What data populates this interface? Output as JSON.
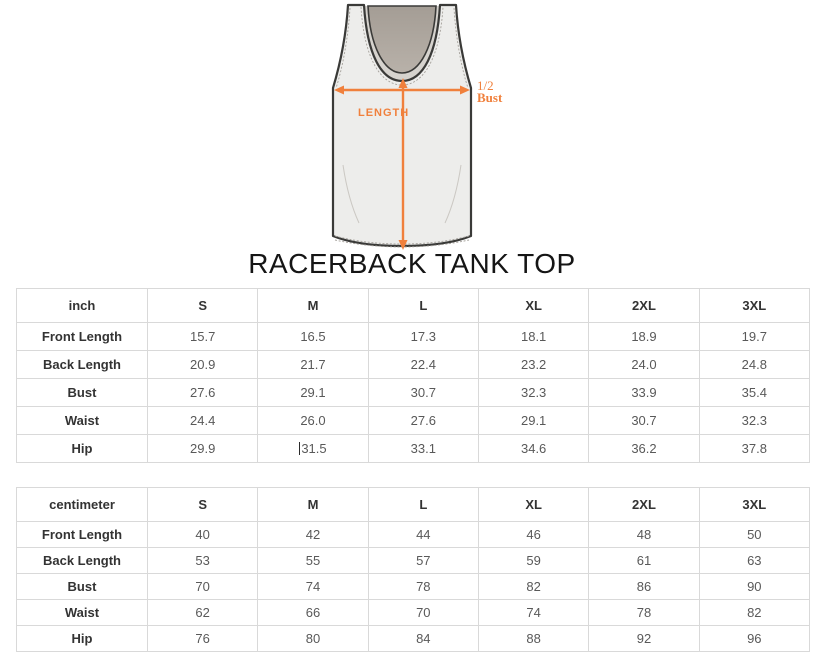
{
  "title": "RACERBACK TANK TOP",
  "illustration": {
    "length_label": "LENGTH",
    "bust_label_line1": "1/2",
    "bust_label_line2": "Bust"
  },
  "artifact": {
    "clipped_text": "t"
  },
  "colors": {
    "accent": "#F0803C",
    "outline": "#3A3A38",
    "shirt": "#EDEDEB",
    "panel-top": "#A49D95",
    "panel-bottom": "#B8B1A9",
    "neck-inner": "#D6D3CE",
    "border": "#D9D9D9",
    "label-text": "#333333",
    "value-text": "#595959",
    "title-text": "#151515"
  },
  "tables": [
    {
      "unit": "inch",
      "columns": [
        "S",
        "M",
        "L",
        "XL",
        "2XL",
        "3XL"
      ],
      "rows": [
        {
          "label": "Front Length",
          "values": [
            "15.7",
            "16.5",
            "17.3",
            "18.1",
            "18.9",
            "19.7"
          ]
        },
        {
          "label": "Back Length",
          "values": [
            "20.9",
            "21.7",
            "22.4",
            "23.2",
            "24.0",
            "24.8"
          ]
        },
        {
          "label": "Bust",
          "values": [
            "27.6",
            "29.1",
            "30.7",
            "32.3",
            "33.9",
            "35.4"
          ]
        },
        {
          "label": "Waist",
          "values": [
            "24.4",
            "26.0",
            "27.6",
            "29.1",
            "30.7",
            "32.3"
          ]
        },
        {
          "label": "Hip",
          "values": [
            "29.9",
            "31.5",
            "33.1",
            "34.6",
            "36.2",
            "37.8"
          ]
        }
      ],
      "caret": {
        "row": 4,
        "col": 1
      }
    },
    {
      "unit": "centimeter",
      "columns": [
        "S",
        "M",
        "L",
        "XL",
        "2XL",
        "3XL"
      ],
      "rows": [
        {
          "label": "Front Length",
          "values": [
            "40",
            "42",
            "44",
            "46",
            "48",
            "50"
          ]
        },
        {
          "label": "Back Length",
          "values": [
            "53",
            "55",
            "57",
            "59",
            "61",
            "63"
          ]
        },
        {
          "label": "Bust",
          "values": [
            "70",
            "74",
            "78",
            "82",
            "86",
            "90"
          ]
        },
        {
          "label": "Waist",
          "values": [
            "62",
            "66",
            "70",
            "74",
            "78",
            "82"
          ]
        },
        {
          "label": "Hip",
          "values": [
            "76",
            "80",
            "84",
            "88",
            "92",
            "96"
          ]
        }
      ]
    }
  ]
}
